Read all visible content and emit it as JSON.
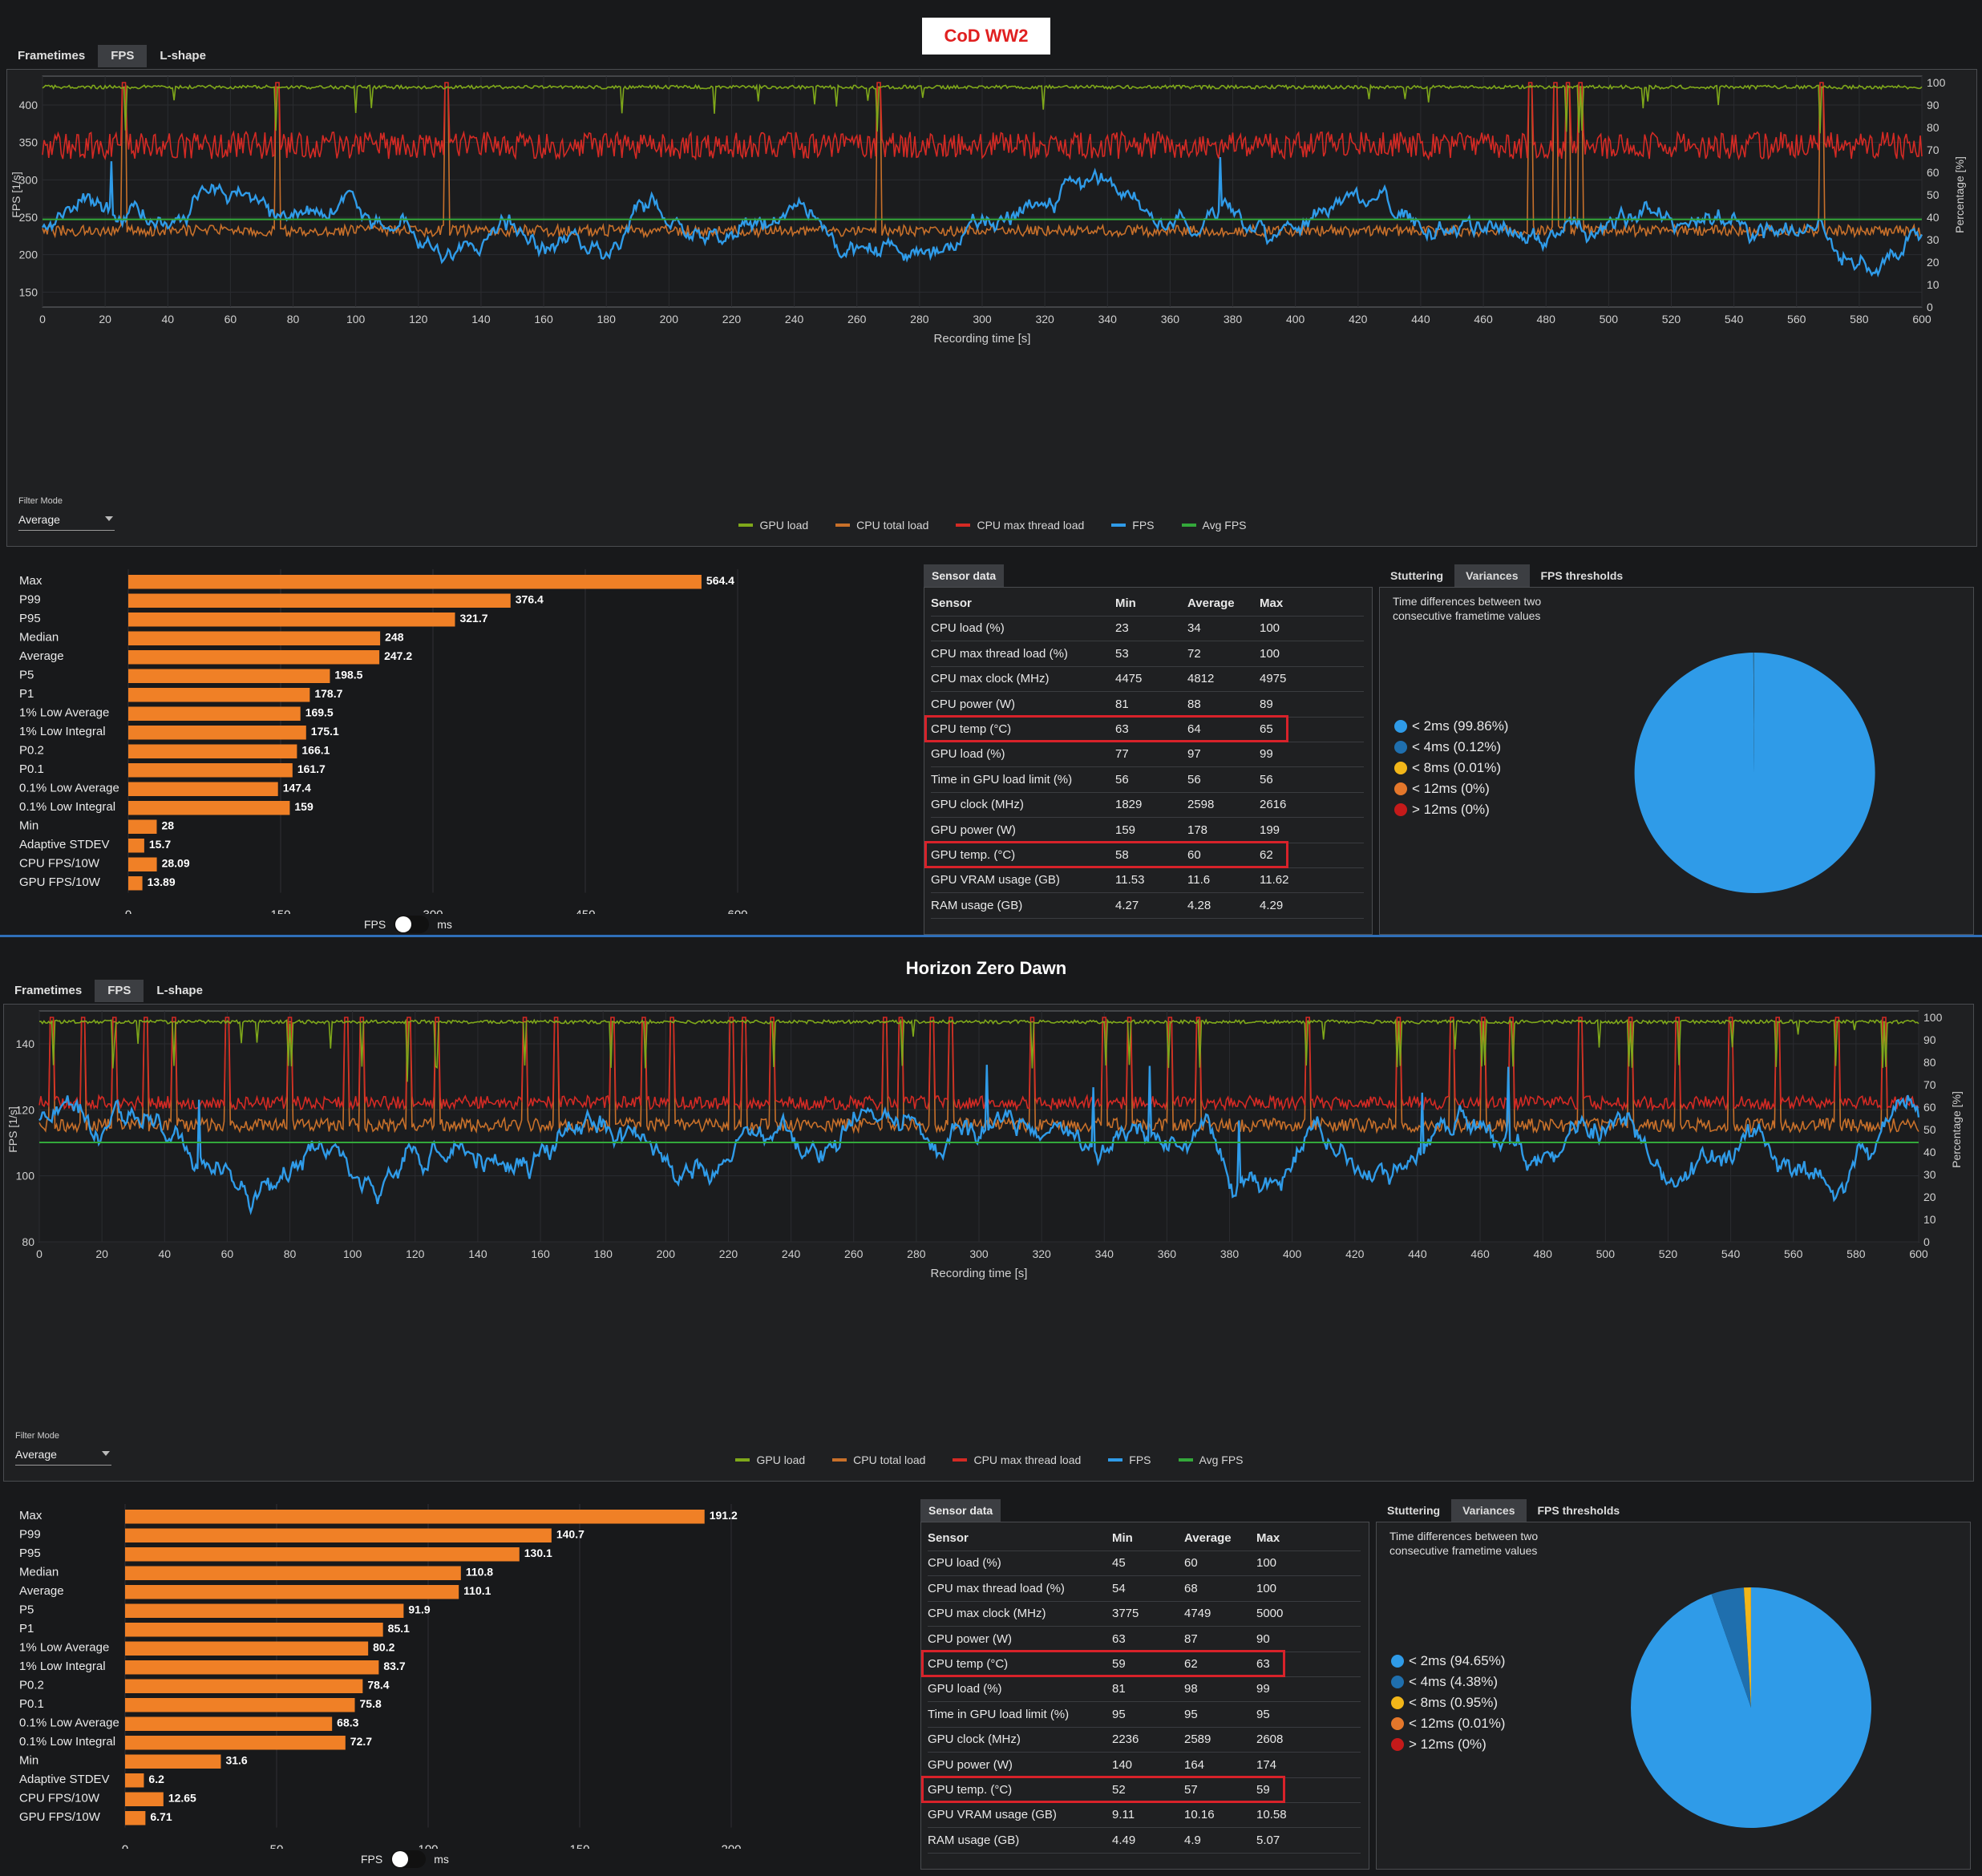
{
  "panels": [
    {
      "title": "CoD WW2",
      "tabs": [
        "Frametimes",
        "FPS",
        "L-shape"
      ],
      "active_tab": "FPS",
      "filter_mode_label": "Filter Mode",
      "filter_mode_value": "Average",
      "chart": {
        "y_axis_label": "FPS [1/s]",
        "y2_axis_label": "Percentage [%]",
        "x_axis_label": "Recording time [s]",
        "y_ticks": [
          "150",
          "200",
          "250",
          "300",
          "350",
          "400"
        ],
        "y_range": [
          130,
          430
        ],
        "y2_ticks": [
          "0",
          "10",
          "20",
          "30",
          "40",
          "50",
          "60",
          "70",
          "80",
          "90",
          "100"
        ],
        "x_ticks": [
          "0",
          "20",
          "40",
          "60",
          "80",
          "100",
          "120",
          "140",
          "160",
          "180",
          "200",
          "220",
          "240",
          "260",
          "280",
          "300",
          "320",
          "340",
          "360",
          "380",
          "400",
          "420",
          "440",
          "460",
          "480",
          "500",
          "520",
          "540",
          "560",
          "580",
          "600"
        ],
        "avg_fps": 247.2,
        "series": {
          "gpu_base": 98,
          "gpu_noise": 0.8,
          "cpu_base": 34,
          "cpu_noise": 2.5,
          "mt_base": 72,
          "mt_noise": 6,
          "fps_base": 245,
          "fps_amp": 35,
          "fps_noise": 8
        },
        "spikes": [
          26,
          75,
          129,
          267,
          475,
          483,
          487,
          491,
          568
        ]
      },
      "stats_bars": {
        "labels": [
          "Max",
          "P99",
          "P95",
          "Median",
          "Average",
          "P5",
          "P1",
          "1% Low Average",
          "1% Low Integral",
          "P0.2",
          "P0.1",
          "0.1% Low Average",
          "0.1% Low Integral",
          "Min",
          "Adaptive STDEV",
          "CPU FPS/10W",
          "GPU FPS/10W"
        ],
        "values": [
          564.4,
          376.4,
          321.7,
          248,
          247.2,
          198.5,
          178.7,
          169.5,
          175.1,
          166.1,
          161.7,
          147.4,
          159,
          28,
          15.7,
          28.09,
          13.89
        ],
        "value_labels": [
          "564.4",
          "376.4",
          "321.7",
          "248",
          "247.2",
          "198.5",
          "178.7",
          "169.5",
          "175.1",
          "166.1",
          "161.7",
          "147.4",
          "159",
          "28",
          "15.7",
          "28.09",
          "13.89"
        ],
        "axis_max": 600,
        "axis_ticks": [
          "0",
          "150",
          "300",
          "450",
          "600"
        ]
      },
      "toggle": {
        "left": "FPS",
        "right": "ms"
      },
      "sensor_tab": "Sensor data",
      "sensor_headers": [
        "Sensor",
        "Min",
        "Average",
        "Max"
      ],
      "sensor_rows": [
        [
          "CPU load (%)",
          "23",
          "34",
          "100"
        ],
        [
          "CPU max thread load (%)",
          "53",
          "72",
          "100"
        ],
        [
          "CPU max clock (MHz)",
          "4475",
          "4812",
          "4975"
        ],
        [
          "CPU power (W)",
          "81",
          "88",
          "89"
        ],
        [
          "CPU temp (°C)",
          "63",
          "64",
          "65"
        ],
        [
          "GPU load (%)",
          "77",
          "97",
          "99"
        ],
        [
          "Time in GPU load limit (%)",
          "56",
          "56",
          "56"
        ],
        [
          "GPU clock (MHz)",
          "1829",
          "2598",
          "2616"
        ],
        [
          "GPU power (W)",
          "159",
          "178",
          "199"
        ],
        [
          "GPU temp. (°C)",
          "58",
          "60",
          "62"
        ],
        [
          "GPU VRAM usage (GB)",
          "11.53",
          "11.6",
          "11.62"
        ],
        [
          "RAM usage (GB)",
          "4.27",
          "4.28",
          "4.29"
        ]
      ],
      "highlight_rows": [
        4,
        9
      ],
      "right_tabs": [
        "Stuttering",
        "Variances",
        "FPS thresholds"
      ],
      "right_active": "Variances",
      "variance_desc": "Time differences between two consecutive frametime values",
      "pie_legend": [
        "< 2ms (99.86%)",
        "< 4ms (0.12%)",
        "< 8ms (0.01%)",
        "< 12ms (0%)",
        "> 12ms (0%)"
      ],
      "pie_values": [
        99.86,
        0.12,
        0.01,
        0,
        0
      ]
    },
    {
      "title": "Horizon Zero Dawn",
      "tabs": [
        "Frametimes",
        "FPS",
        "L-shape"
      ],
      "active_tab": "FPS",
      "filter_mode_label": "Filter Mode",
      "filter_mode_value": "Average",
      "chart": {
        "y_axis_label": "FPS [1/s]",
        "y2_axis_label": "Percentage [%]",
        "x_axis_label": "Recording time [s]",
        "y_ticks": [
          "80",
          "100",
          "120",
          "140"
        ],
        "y_range": [
          80,
          148
        ],
        "y2_ticks": [
          "0",
          "10",
          "20",
          "30",
          "40",
          "50",
          "60",
          "70",
          "80",
          "90",
          "100"
        ],
        "x_ticks": [
          "0",
          "20",
          "40",
          "60",
          "80",
          "100",
          "120",
          "140",
          "160",
          "180",
          "200",
          "220",
          "240",
          "260",
          "280",
          "300",
          "320",
          "340",
          "360",
          "380",
          "400",
          "420",
          "440",
          "460",
          "480",
          "500",
          "520",
          "540",
          "560",
          "580",
          "600"
        ],
        "avg_fps": 110.1,
        "series": {
          "gpu_base": 98,
          "gpu_noise": 0.8,
          "cpu_base": 52,
          "cpu_noise": 3,
          "mt_base": 62,
          "mt_noise": 3,
          "fps_base": 110,
          "fps_amp": 10,
          "fps_noise": 2.5
        },
        "spikes": [
          4,
          14,
          24,
          34,
          43,
          60,
          80,
          98,
          103,
          118,
          127,
          155,
          165,
          183,
          193,
          202,
          221,
          225,
          234,
          270,
          275,
          285,
          291,
          317,
          340,
          348,
          361,
          370,
          405,
          434,
          451,
          461,
          470,
          492,
          508,
          523,
          540,
          555,
          574,
          589
        ]
      },
      "stats_bars": {
        "labels": [
          "Max",
          "P99",
          "P95",
          "Median",
          "Average",
          "P5",
          "P1",
          "1% Low Average",
          "1% Low Integral",
          "P0.2",
          "P0.1",
          "0.1% Low Average",
          "0.1% Low Integral",
          "Min",
          "Adaptive STDEV",
          "CPU FPS/10W",
          "GPU FPS/10W"
        ],
        "values": [
          191.2,
          140.7,
          130.1,
          110.8,
          110.1,
          91.9,
          85.1,
          80.2,
          83.7,
          78.4,
          75.8,
          68.3,
          72.7,
          31.6,
          6.2,
          12.65,
          6.71
        ],
        "value_labels": [
          "191.2",
          "140.7",
          "130.1",
          "110.8",
          "110.1",
          "91.9",
          "85.1",
          "80.2",
          "83.7",
          "78.4",
          "75.8",
          "68.3",
          "72.7",
          "31.6",
          "6.2",
          "12.65",
          "6.71"
        ],
        "axis_max": 200,
        "axis_ticks": [
          "0",
          "50",
          "100",
          "150",
          "200"
        ]
      },
      "toggle": {
        "left": "FPS",
        "right": "ms"
      },
      "sensor_tab": "Sensor data",
      "sensor_headers": [
        "Sensor",
        "Min",
        "Average",
        "Max"
      ],
      "sensor_rows": [
        [
          "CPU load (%)",
          "45",
          "60",
          "100"
        ],
        [
          "CPU max thread load (%)",
          "54",
          "68",
          "100"
        ],
        [
          "CPU max clock (MHz)",
          "3775",
          "4749",
          "5000"
        ],
        [
          "CPU power (W)",
          "63",
          "87",
          "90"
        ],
        [
          "CPU temp (°C)",
          "59",
          "62",
          "63"
        ],
        [
          "GPU load (%)",
          "81",
          "98",
          "99"
        ],
        [
          "Time in GPU load limit (%)",
          "95",
          "95",
          "95"
        ],
        [
          "GPU clock (MHz)",
          "2236",
          "2589",
          "2608"
        ],
        [
          "GPU power (W)",
          "140",
          "164",
          "174"
        ],
        [
          "GPU temp. (°C)",
          "52",
          "57",
          "59"
        ],
        [
          "GPU VRAM usage (GB)",
          "9.11",
          "10.16",
          "10.58"
        ],
        [
          "RAM usage (GB)",
          "4.49",
          "4.9",
          "5.07"
        ]
      ],
      "highlight_rows": [
        4,
        9
      ],
      "right_tabs": [
        "Stuttering",
        "Variances",
        "FPS thresholds"
      ],
      "right_active": "Variances",
      "variance_desc": "Time differences between two consecutive frametime values",
      "pie_legend": [
        "< 2ms (94.65%)",
        "< 4ms (4.38%)",
        "< 8ms (0.95%)",
        "< 12ms (0.01%)",
        "> 12ms (0%)"
      ],
      "pie_values": [
        94.65,
        4.38,
        0.95,
        0.01,
        0
      ]
    }
  ],
  "legend": [
    "GPU load",
    "CPU total load",
    "CPU max thread load",
    "FPS",
    "Avg FPS"
  ],
  "colors": {
    "gpu": "#7fa81a",
    "cpu": "#c8702a",
    "mt": "#d42a24",
    "fps": "#2f9be8",
    "avg": "#33a83a",
    "bar": "#f08026",
    "pie": [
      "#2f9be8",
      "#1f6fae",
      "#f2b619",
      "#e4772b",
      "#c41a1a"
    ]
  }
}
